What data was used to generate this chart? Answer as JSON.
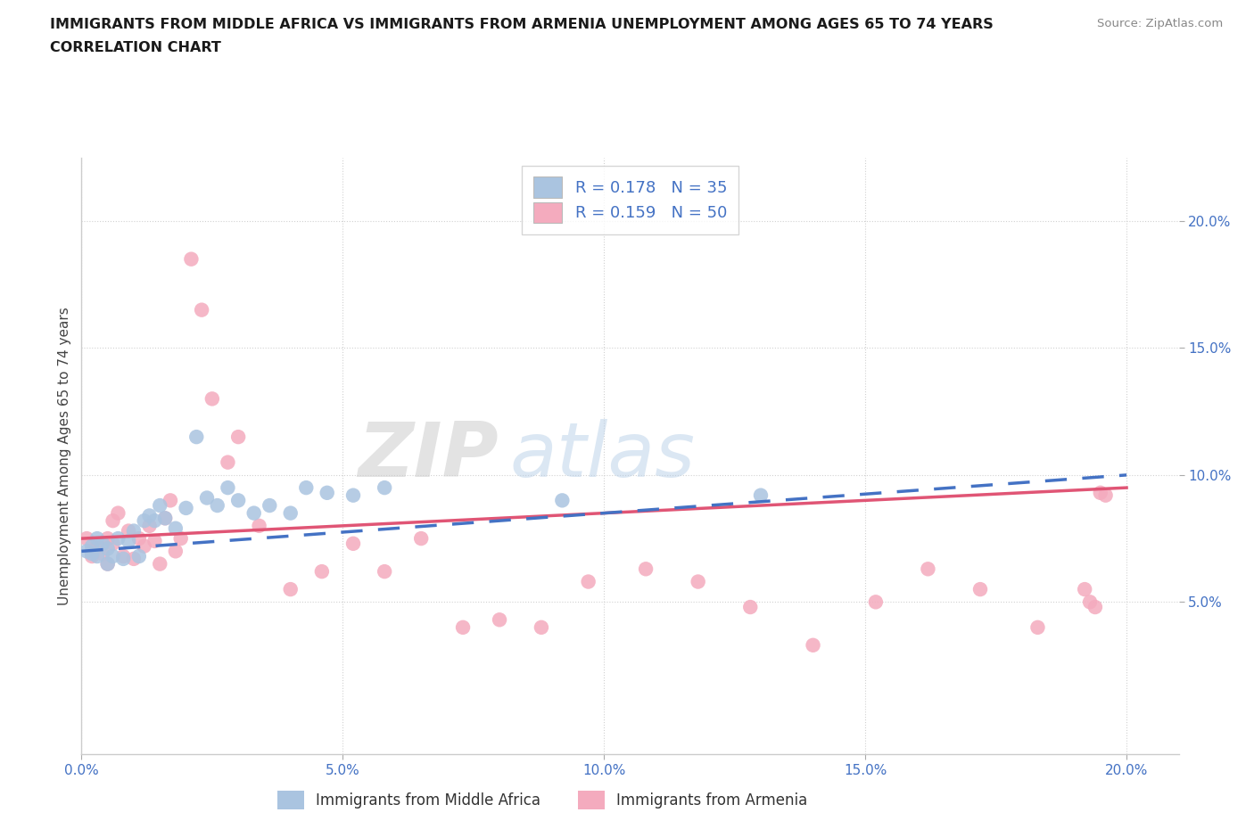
{
  "title_line1": "IMMIGRANTS FROM MIDDLE AFRICA VS IMMIGRANTS FROM ARMENIA UNEMPLOYMENT AMONG AGES 65 TO 74 YEARS",
  "title_line2": "CORRELATION CHART",
  "source_text": "Source: ZipAtlas.com",
  "ylabel": "Unemployment Among Ages 65 to 74 years",
  "xlim": [
    0.0,
    0.21
  ],
  "ylim": [
    -0.01,
    0.225
  ],
  "xticks": [
    0.0,
    0.05,
    0.1,
    0.15,
    0.2
  ],
  "yticks": [
    0.05,
    0.1,
    0.15,
    0.2
  ],
  "xtick_labels": [
    "0.0%",
    "5.0%",
    "10.0%",
    "15.0%",
    "20.0%"
  ],
  "ytick_labels": [
    "5.0%",
    "10.0%",
    "15.0%",
    "20.0%"
  ],
  "r_middle_africa": 0.178,
  "n_middle_africa": 35,
  "r_armenia": 0.159,
  "n_armenia": 50,
  "color_middle_africa": "#aac4e0",
  "color_armenia": "#f4abbe",
  "line_color_middle_africa": "#4472c4",
  "line_color_armenia": "#e05575",
  "middle_africa_x": [
    0.001,
    0.002,
    0.002,
    0.003,
    0.003,
    0.004,
    0.005,
    0.005,
    0.006,
    0.007,
    0.008,
    0.009,
    0.01,
    0.011,
    0.012,
    0.013,
    0.014,
    0.015,
    0.016,
    0.018,
    0.02,
    0.022,
    0.024,
    0.026,
    0.028,
    0.03,
    0.033,
    0.036,
    0.04,
    0.043,
    0.047,
    0.052,
    0.058,
    0.092,
    0.13
  ],
  "middle_africa_y": [
    0.07,
    0.069,
    0.072,
    0.068,
    0.075,
    0.073,
    0.065,
    0.071,
    0.068,
    0.075,
    0.067,
    0.074,
    0.078,
    0.068,
    0.082,
    0.084,
    0.082,
    0.088,
    0.083,
    0.079,
    0.087,
    0.115,
    0.091,
    0.088,
    0.095,
    0.09,
    0.085,
    0.088,
    0.085,
    0.095,
    0.093,
    0.092,
    0.095,
    0.09,
    0.092
  ],
  "armenia_x": [
    0.001,
    0.002,
    0.002,
    0.003,
    0.004,
    0.005,
    0.005,
    0.006,
    0.006,
    0.007,
    0.008,
    0.009,
    0.01,
    0.011,
    0.012,
    0.013,
    0.014,
    0.015,
    0.016,
    0.017,
    0.018,
    0.019,
    0.021,
    0.023,
    0.025,
    0.028,
    0.03,
    0.034,
    0.04,
    0.046,
    0.052,
    0.058,
    0.065,
    0.073,
    0.08,
    0.088,
    0.097,
    0.108,
    0.118,
    0.128,
    0.14,
    0.152,
    0.162,
    0.172,
    0.183,
    0.192,
    0.193,
    0.194,
    0.195,
    0.196
  ],
  "armenia_y": [
    0.075,
    0.07,
    0.068,
    0.072,
    0.069,
    0.065,
    0.075,
    0.082,
    0.073,
    0.085,
    0.068,
    0.078,
    0.067,
    0.075,
    0.072,
    0.08,
    0.074,
    0.065,
    0.083,
    0.09,
    0.07,
    0.075,
    0.185,
    0.165,
    0.13,
    0.105,
    0.115,
    0.08,
    0.055,
    0.062,
    0.073,
    0.062,
    0.075,
    0.04,
    0.043,
    0.04,
    0.058,
    0.063,
    0.058,
    0.048,
    0.033,
    0.05,
    0.063,
    0.055,
    0.04,
    0.055,
    0.05,
    0.048,
    0.093,
    0.092
  ],
  "line_ma_x0": 0.0,
  "line_ma_y0": 0.07,
  "line_ma_x1": 0.2,
  "line_ma_y1": 0.1,
  "line_arm_x0": 0.0,
  "line_arm_y0": 0.075,
  "line_arm_x1": 0.2,
  "line_arm_y1": 0.095
}
